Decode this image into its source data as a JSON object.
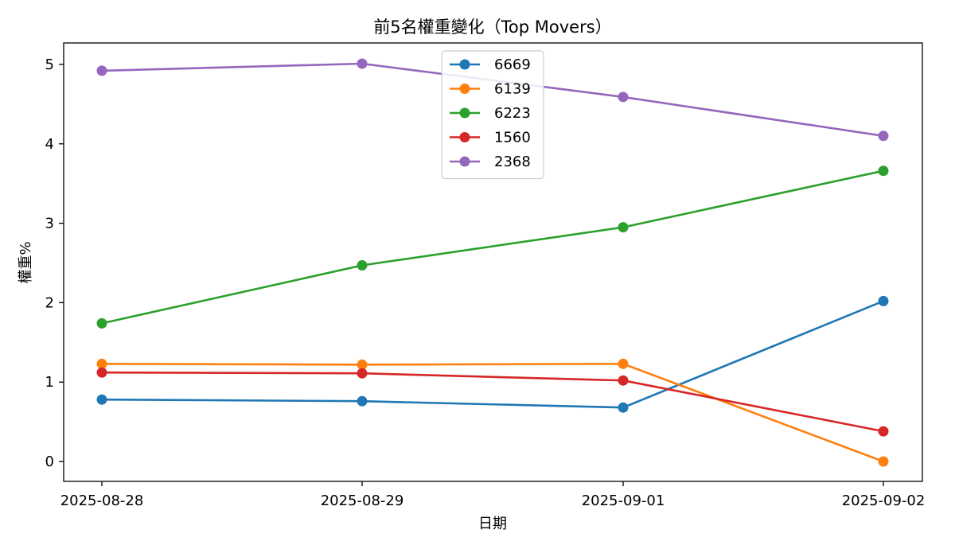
{
  "chart_data": {
    "type": "line",
    "title": "前5名權重變化（Top Movers）",
    "xlabel": "日期",
    "ylabel": "權重%",
    "categories": [
      "2025-08-28",
      "2025-08-29",
      "2025-09-01",
      "2025-09-02"
    ],
    "yticks": [
      0,
      1,
      2,
      3,
      4,
      5
    ],
    "ylim": [
      -0.25,
      5.27
    ],
    "grid": false,
    "legend_position": "upper center",
    "series": [
      {
        "name": "6669",
        "color": "#1f77b4",
        "values": [
          0.78,
          0.76,
          0.68,
          2.02
        ]
      },
      {
        "name": "6139",
        "color": "#ff7f0e",
        "values": [
          1.23,
          1.22,
          1.23,
          0.0
        ]
      },
      {
        "name": "6223",
        "color": "#2ca02c",
        "values": [
          1.74,
          2.47,
          2.95,
          3.66
        ]
      },
      {
        "name": "1560",
        "color": "#d62728",
        "values": [
          1.12,
          1.11,
          1.02,
          0.38
        ]
      },
      {
        "name": "2368",
        "color": "#9467bd",
        "values": [
          4.92,
          5.01,
          4.59,
          4.1
        ]
      }
    ]
  }
}
